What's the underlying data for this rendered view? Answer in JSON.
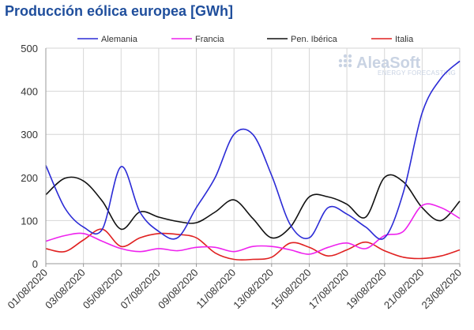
{
  "title": "Producción eólica europea [GWh]",
  "logo": {
    "name": "AleaSoft",
    "tagline": "ENERGY FORECASTING"
  },
  "chart_data": {
    "type": "line",
    "title": "Producción eólica europea [GWh]",
    "xlabel": "",
    "ylabel": "",
    "ylim": [
      0,
      500
    ],
    "yticks": [
      0,
      100,
      200,
      300,
      400,
      500
    ],
    "grid": "vertical-and-horizontal",
    "legend_position": "top",
    "x": [
      "01/08/2020",
      "02/08/2020",
      "03/08/2020",
      "04/08/2020",
      "05/08/2020",
      "06/08/2020",
      "07/08/2020",
      "08/08/2020",
      "09/08/2020",
      "10/08/2020",
      "11/08/2020",
      "12/08/2020",
      "13/08/2020",
      "14/08/2020",
      "15/08/2020",
      "16/08/2020",
      "17/08/2020",
      "18/08/2020",
      "19/08/2020",
      "20/08/2020",
      "21/08/2020",
      "22/08/2020",
      "23/08/2020"
    ],
    "xtick_labels": [
      "01/08/2020",
      "03/08/2020",
      "05/08/2020",
      "07/08/2020",
      "09/08/2020",
      "11/08/2020",
      "13/08/2020",
      "15/08/2020",
      "17/08/2020",
      "19/08/2020",
      "21/08/2020",
      "23/08/2020"
    ],
    "series": [
      {
        "name": "Alemania",
        "color": "#2b2bd6",
        "values": [
          228,
          130,
          85,
          80,
          225,
          120,
          75,
          60,
          130,
          200,
          300,
          300,
          205,
          90,
          60,
          130,
          115,
          85,
          60,
          165,
          350,
          430,
          470
        ]
      },
      {
        "name": "Francia",
        "color": "#ee22ee",
        "values": [
          52,
          65,
          70,
          52,
          35,
          28,
          35,
          30,
          38,
          38,
          28,
          40,
          40,
          32,
          22,
          38,
          48,
          35,
          65,
          75,
          135,
          130,
          105
        ]
      },
      {
        "name": "Pen. Ibérica",
        "color": "#111111",
        "values": [
          160,
          198,
          192,
          145,
          80,
          120,
          108,
          98,
          95,
          120,
          148,
          105,
          60,
          85,
          155,
          155,
          138,
          108,
          200,
          190,
          130,
          100,
          145
        ]
      },
      {
        "name": "Italia",
        "color": "#e02020",
        "values": [
          35,
          28,
          55,
          80,
          40,
          60,
          70,
          68,
          60,
          25,
          10,
          10,
          15,
          48,
          38,
          18,
          32,
          50,
          30,
          15,
          12,
          18,
          32
        ]
      }
    ]
  }
}
